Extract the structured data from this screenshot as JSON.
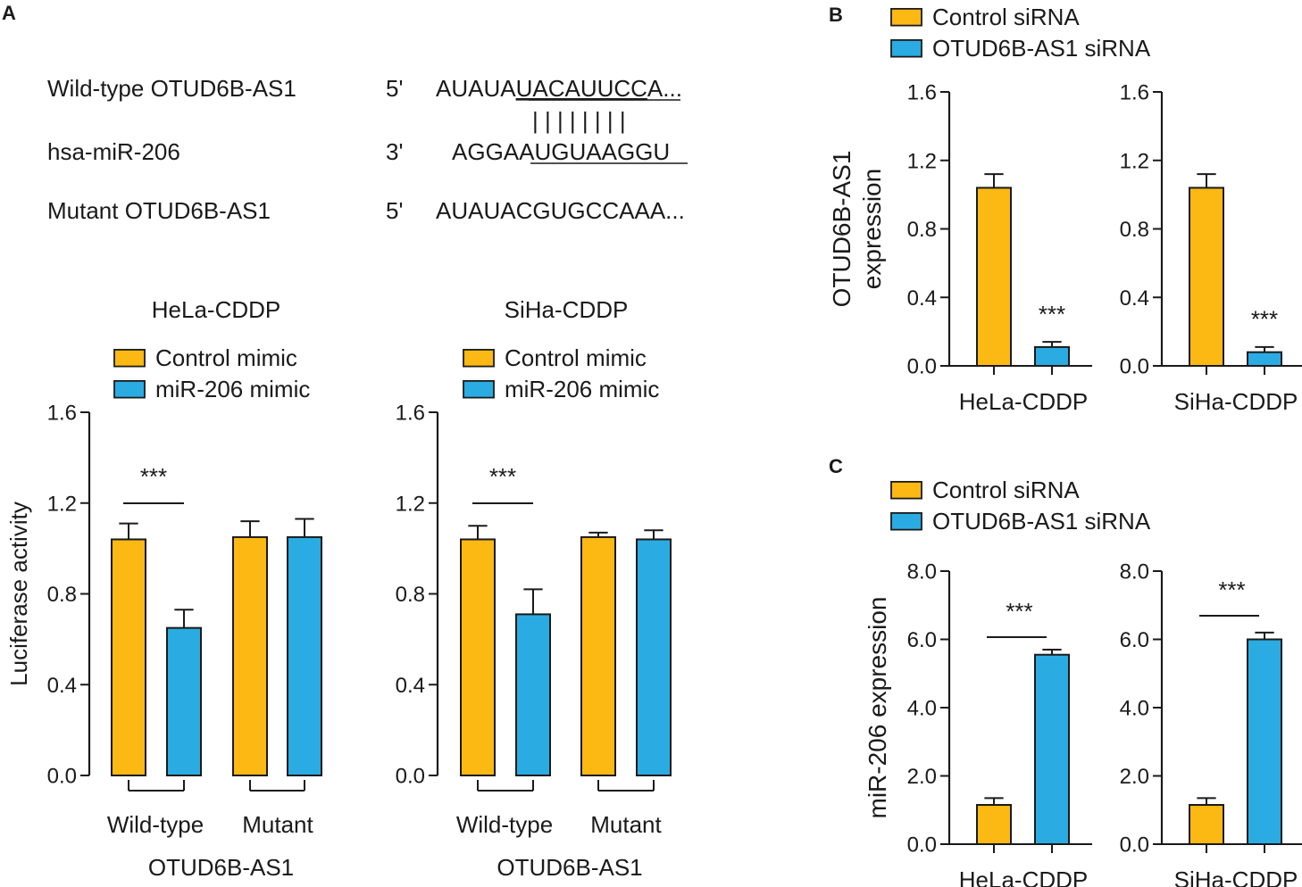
{
  "panels": {
    "a": {
      "letter": "A",
      "sequences": {
        "wild_type_label": "Wild-type OTUD6B-AS1",
        "wild_type_prime": "5'",
        "wild_type_pre": "AUAUA",
        "wild_type_site": "UACAUUCC",
        "wild_type_post": "A...",
        "pairing": "| | | | | | | |",
        "mirna_label": "hsa-miR-206",
        "mirna_prime": "3'",
        "mirna_pre": "AGGA",
        "mirna_site": "AUGUAAGG",
        "mirna_post": "U",
        "mutant_label": "Mutant OTUD6B-AS1",
        "mutant_prime": "5'",
        "mutant_seq": "AUAUACGUGCCAAA..."
      }
    },
    "b": {
      "letter": "B"
    },
    "c": {
      "letter": "C"
    }
  },
  "chart_data": [
    {
      "id": "a-hela",
      "type": "bar",
      "title": "HeLa-CDDP",
      "legend": [
        "Control mimic",
        "miR-206 mimic"
      ],
      "ylabel": "Luciferase activity",
      "ylim": [
        0,
        1.6
      ],
      "yticks": [
        "0.0",
        "0.4",
        "0.8",
        "1.2",
        "1.6"
      ],
      "groups": [
        "Wild-type",
        "Mutant"
      ],
      "xlabel": "OTUD6B-AS1",
      "series": [
        {
          "name": "Control mimic",
          "color": "#FDB913",
          "values": [
            1.04,
            1.05
          ],
          "errors": [
            0.07,
            0.07
          ]
        },
        {
          "name": "miR-206 mimic",
          "color": "#2AACE2",
          "values": [
            0.65,
            1.05
          ],
          "errors": [
            0.08,
            0.08
          ]
        }
      ],
      "significance": [
        {
          "group": 0,
          "label": "***"
        }
      ]
    },
    {
      "id": "a-siha",
      "type": "bar",
      "title": "SiHa-CDDP",
      "legend": [
        "Control mimic",
        "miR-206 mimic"
      ],
      "ylabel": "",
      "ylim": [
        0,
        1.6
      ],
      "yticks": [
        "0.0",
        "0.4",
        "0.8",
        "1.2",
        "1.6"
      ],
      "groups": [
        "Wild-type",
        "Mutant"
      ],
      "xlabel": "OTUD6B-AS1",
      "series": [
        {
          "name": "Control mimic",
          "color": "#FDB913",
          "values": [
            1.04,
            1.05
          ],
          "errors": [
            0.06,
            0.02
          ]
        },
        {
          "name": "miR-206 mimic",
          "color": "#2AACE2",
          "values": [
            0.71,
            1.04
          ],
          "errors": [
            0.11,
            0.04
          ]
        }
      ],
      "significance": [
        {
          "group": 0,
          "label": "***"
        }
      ]
    },
    {
      "id": "b",
      "type": "bar",
      "legend": [
        "Control siRNA",
        "OTUD6B-AS1 siRNA"
      ],
      "ylabel_lines": [
        "OTUD6B-AS1",
        "expression"
      ],
      "ylim": [
        0,
        1.6
      ],
      "yticks": [
        "0.0",
        "0.4",
        "0.8",
        "1.2",
        "1.6"
      ],
      "subcharts": [
        {
          "label": "HeLa-CDDP",
          "values": [
            1.04,
            0.11
          ],
          "errors": [
            0.08,
            0.03
          ],
          "star": "***"
        },
        {
          "label": "SiHa-CDDP",
          "values": [
            1.04,
            0.08
          ],
          "errors": [
            0.08,
            0.03
          ],
          "star": "***"
        }
      ],
      "colors": [
        "#FDB913",
        "#2AACE2"
      ]
    },
    {
      "id": "c",
      "type": "bar",
      "legend": [
        "Control siRNA",
        "OTUD6B-AS1 siRNA"
      ],
      "ylabel": "miR-206 expression",
      "ylim": [
        0,
        8.0
      ],
      "yticks": [
        "0.0",
        "2.0",
        "4.0",
        "6.0",
        "8.0"
      ],
      "subcharts": [
        {
          "label": "HeLa-CDDP",
          "values": [
            1.15,
            5.55
          ],
          "errors": [
            0.2,
            0.15
          ],
          "star": "***"
        },
        {
          "label": "SiHa-CDDP",
          "values": [
            1.15,
            6.0
          ],
          "errors": [
            0.2,
            0.2
          ],
          "star": "***"
        }
      ],
      "colors": [
        "#FDB913",
        "#2AACE2"
      ]
    }
  ]
}
